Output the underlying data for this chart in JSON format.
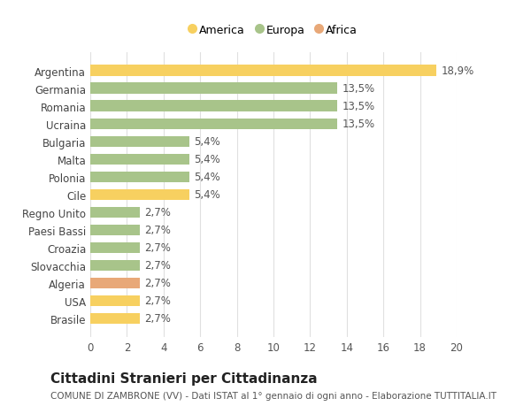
{
  "categories": [
    "Brasile",
    "USA",
    "Algeria",
    "Slovacchia",
    "Croazia",
    "Paesi Bassi",
    "Regno Unito",
    "Cile",
    "Polonia",
    "Malta",
    "Bulgaria",
    "Ucraina",
    "Romania",
    "Germania",
    "Argentina"
  ],
  "values": [
    2.7,
    2.7,
    2.7,
    2.7,
    2.7,
    2.7,
    2.7,
    5.4,
    5.4,
    5.4,
    5.4,
    13.5,
    13.5,
    13.5,
    18.9
  ],
  "labels": [
    "2,7%",
    "2,7%",
    "2,7%",
    "2,7%",
    "2,7%",
    "2,7%",
    "2,7%",
    "5,4%",
    "5,4%",
    "5,4%",
    "5,4%",
    "13,5%",
    "13,5%",
    "13,5%",
    "18,9%"
  ],
  "colors": [
    "#f7d060",
    "#f7d060",
    "#e8a878",
    "#a8c48a",
    "#a8c48a",
    "#a8c48a",
    "#a8c48a",
    "#f7d060",
    "#a8c48a",
    "#a8c48a",
    "#a8c48a",
    "#a8c48a",
    "#a8c48a",
    "#a8c48a",
    "#f7d060"
  ],
  "legend_labels": [
    "America",
    "Europa",
    "Africa"
  ],
  "legend_colors": [
    "#f7d060",
    "#a8c48a",
    "#e8a878"
  ],
  "title": "Cittadini Stranieri per Cittadinanza",
  "subtitle": "COMUNE DI ZAMBRONE (VV) - Dati ISTAT al 1° gennaio di ogni anno - Elaborazione TUTTITALIA.IT",
  "xlim": [
    0,
    20
  ],
  "xticks": [
    0,
    2,
    4,
    6,
    8,
    10,
    12,
    14,
    16,
    18,
    20
  ],
  "background_color": "#ffffff",
  "grid_color": "#e0e0e0",
  "label_fontsize": 8.5,
  "ylabel_fontsize": 8.5,
  "xlabel_fontsize": 8.5,
  "title_fontsize": 11,
  "subtitle_fontsize": 7.5
}
